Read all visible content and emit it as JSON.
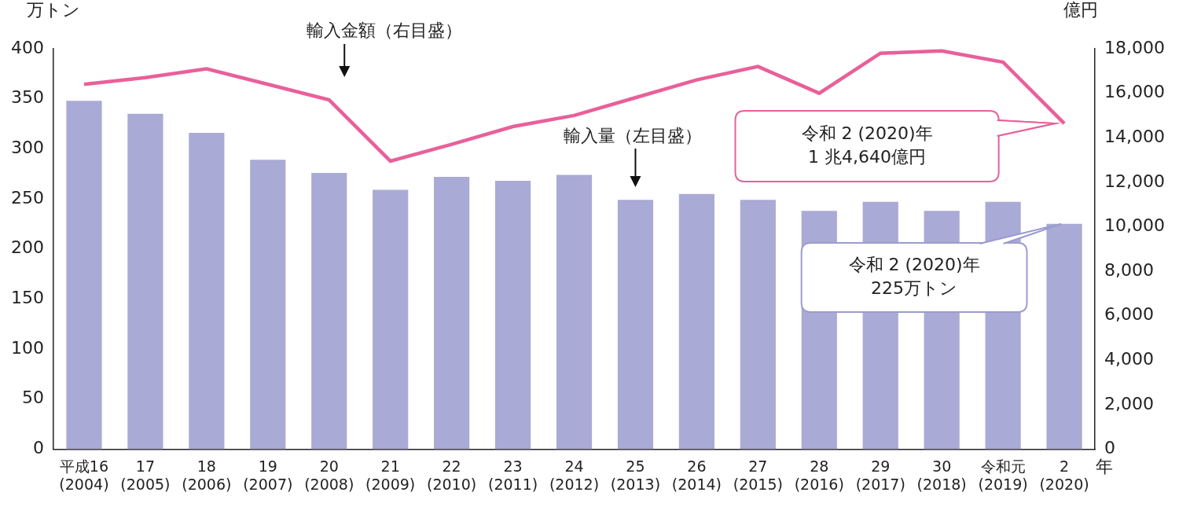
{
  "chart_data": {
    "type": "bar",
    "categories": [
      [
        "平成16",
        "(2004)"
      ],
      [
        "17",
        "(2005)"
      ],
      [
        "18",
        "(2006)"
      ],
      [
        "19",
        "(2007)"
      ],
      [
        "20",
        "(2008)"
      ],
      [
        "21",
        "(2009)"
      ],
      [
        "22",
        "(2010)"
      ],
      [
        "23",
        "(2011)"
      ],
      [
        "24",
        "(2012)"
      ],
      [
        "25",
        "(2013)"
      ],
      [
        "26",
        "(2014)"
      ],
      [
        "27",
        "(2015)"
      ],
      [
        "28",
        "(2016)"
      ],
      [
        "29",
        "(2017)"
      ],
      [
        "30",
        "(2018)"
      ],
      [
        "令和元",
        "(2019)"
      ],
      [
        "2",
        "(2020)"
      ]
    ],
    "x_label": "年",
    "y_label": "万トン",
    "y2_label": "億円",
    "series": [
      {
        "type": "bar",
        "color": "#aaaad6",
        "values": [
          348,
          335,
          316,
          289,
          276,
          259,
          272,
          268,
          274,
          249,
          255,
          249,
          238,
          247,
          238,
          247,
          225
        ]
      },
      {
        "type": "line",
        "axis": "y2",
        "color": "#e8609a",
        "values": [
          16400,
          16700,
          17100,
          16400,
          15700,
          12950,
          13700,
          14500,
          15000,
          15800,
          16600,
          17200,
          16000,
          17800,
          17900,
          17400,
          14640
        ]
      }
    ],
    "ylim": [
      0,
      400
    ],
    "yticks": [
      0,
      50,
      100,
      150,
      200,
      250,
      300,
      350,
      400
    ],
    "y2lim": [
      0,
      18000
    ],
    "y2ticks": [
      0,
      {
        "value": 2000,
        "label": "2,000"
      },
      {
        "value": 4000,
        "label": "4,000"
      },
      {
        "value": 6000,
        "label": "6,000"
      },
      {
        "value": 8000,
        "label": "8,000"
      },
      {
        "value": 10000,
        "label": "10,000"
      },
      {
        "value": 12000,
        "label": "12,000"
      },
      {
        "value": 14000,
        "label": "14,000"
      },
      {
        "value": 16000,
        "label": "16,000"
      },
      {
        "value": 18000,
        "label": "18,000"
      }
    ],
    "grid": false,
    "annotations": [
      {
        "text": "輸入金額（右目盛）"
      },
      {
        "text": "輸入量（左目盛）"
      },
      {
        "text": [
          "令和 2 (2020)年",
          "1 兆4,640億円"
        ]
      },
      {
        "text": [
          "令和 2 (2020)年",
          "225万トン"
        ]
      }
    ]
  }
}
